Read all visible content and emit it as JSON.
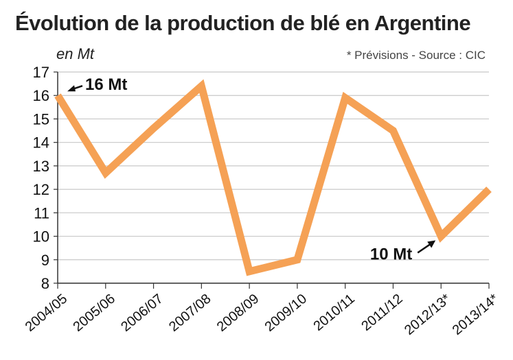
{
  "chart_data": {
    "type": "line",
    "title": "Évolution de la production de blé en Argentine",
    "ylabel": "en Mt",
    "source": "* Prévisions - Source : CIC",
    "categories": [
      "2004/05",
      "2005/06",
      "2006/07",
      "2007/08",
      "2008/09",
      "2009/10",
      "2010/11",
      "2011/12",
      "2012/13*",
      "2013/14*"
    ],
    "values": [
      16.0,
      12.7,
      14.6,
      16.4,
      8.5,
      9.0,
      15.9,
      14.5,
      10.0,
      12.0
    ],
    "ylim": [
      8,
      17
    ],
    "yticks": [
      8,
      9,
      10,
      11,
      12,
      13,
      14,
      15,
      16,
      17
    ],
    "grid": true,
    "colors": {
      "line": "#f5a155",
      "grid": "#c8c8c8",
      "axis": "#333333"
    },
    "annotations": [
      {
        "text": "16 Mt",
        "x": "2004/05",
        "y": 16.0
      },
      {
        "text": "10 Mt",
        "x": "2012/13*",
        "y": 10.0
      }
    ]
  }
}
